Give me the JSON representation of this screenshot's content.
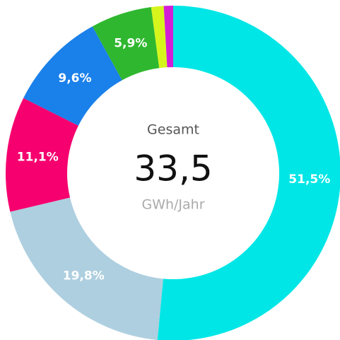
{
  "chart_data": {
    "type": "donut",
    "center_title": "Gesamt",
    "total": {
      "value": 33.5,
      "label": "33,5"
    },
    "unit": "GWh/Jahr",
    "series": [
      {
        "values": [
          51.5,
          19.8,
          11.1,
          9.6,
          5.9,
          1.2,
          0.9
        ],
        "value_labels": [
          "51,5%",
          "19,8%",
          "11,1%",
          "9,6%",
          "5,9%",
          null,
          null
        ],
        "colors": [
          "#00e6e6",
          "#aecfdf",
          "#f5006e",
          "#1a80ea",
          "#2fb82f",
          "#d6f51c",
          "#d21fd6"
        ]
      }
    ]
  }
}
